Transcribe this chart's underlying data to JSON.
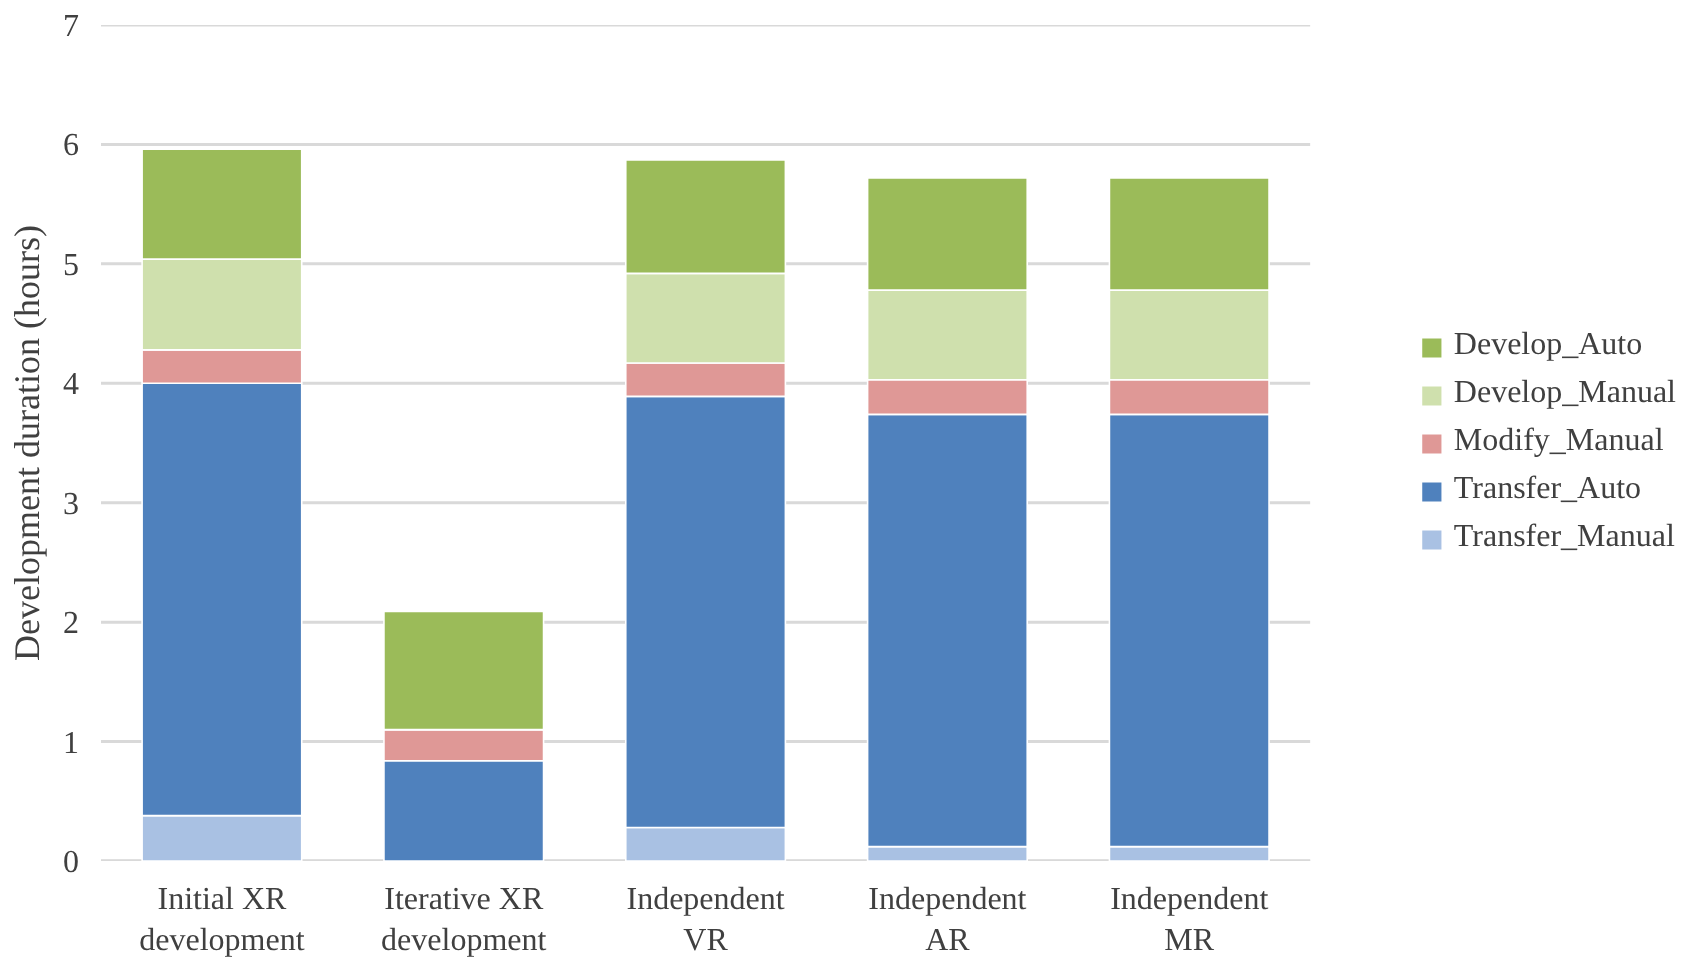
{
  "chart_data": {
    "type": "bar",
    "stacked": true,
    "ylabel": "Development duration (hours)",
    "categories": [
      "Initial XR\ndevelopment",
      "Iterative XR\ndevelopment",
      "Independent\nVR",
      "Independent\nAR",
      "Independent\nMR"
    ],
    "series": [
      {
        "name": "Transfer_Manual",
        "color": "#a9c1e3",
        "values": [
          0.38,
          0,
          0.28,
          0.12,
          0.12
        ]
      },
      {
        "name": "Transfer_Auto",
        "color": "#4f81bd",
        "values": [
          3.62,
          0.84,
          3.61,
          3.62,
          3.62
        ]
      },
      {
        "name": "Modify_Manual",
        "color": "#df9896",
        "values": [
          0.28,
          0.26,
          0.28,
          0.29,
          0.29
        ]
      },
      {
        "name": "Develop_Manual",
        "color": "#cfe0ad",
        "values": [
          0.76,
          0,
          0.75,
          0.75,
          0.75
        ]
      },
      {
        "name": "Develop_Auto",
        "color": "#9bbb59",
        "values": [
          0.92,
          0.99,
          0.95,
          0.94,
          0.94
        ]
      }
    ],
    "ylim": [
      0,
      7
    ],
    "yticks": [
      0,
      1,
      2,
      3,
      4,
      5,
      6,
      7
    ],
    "grid": "y",
    "legend": "right"
  }
}
